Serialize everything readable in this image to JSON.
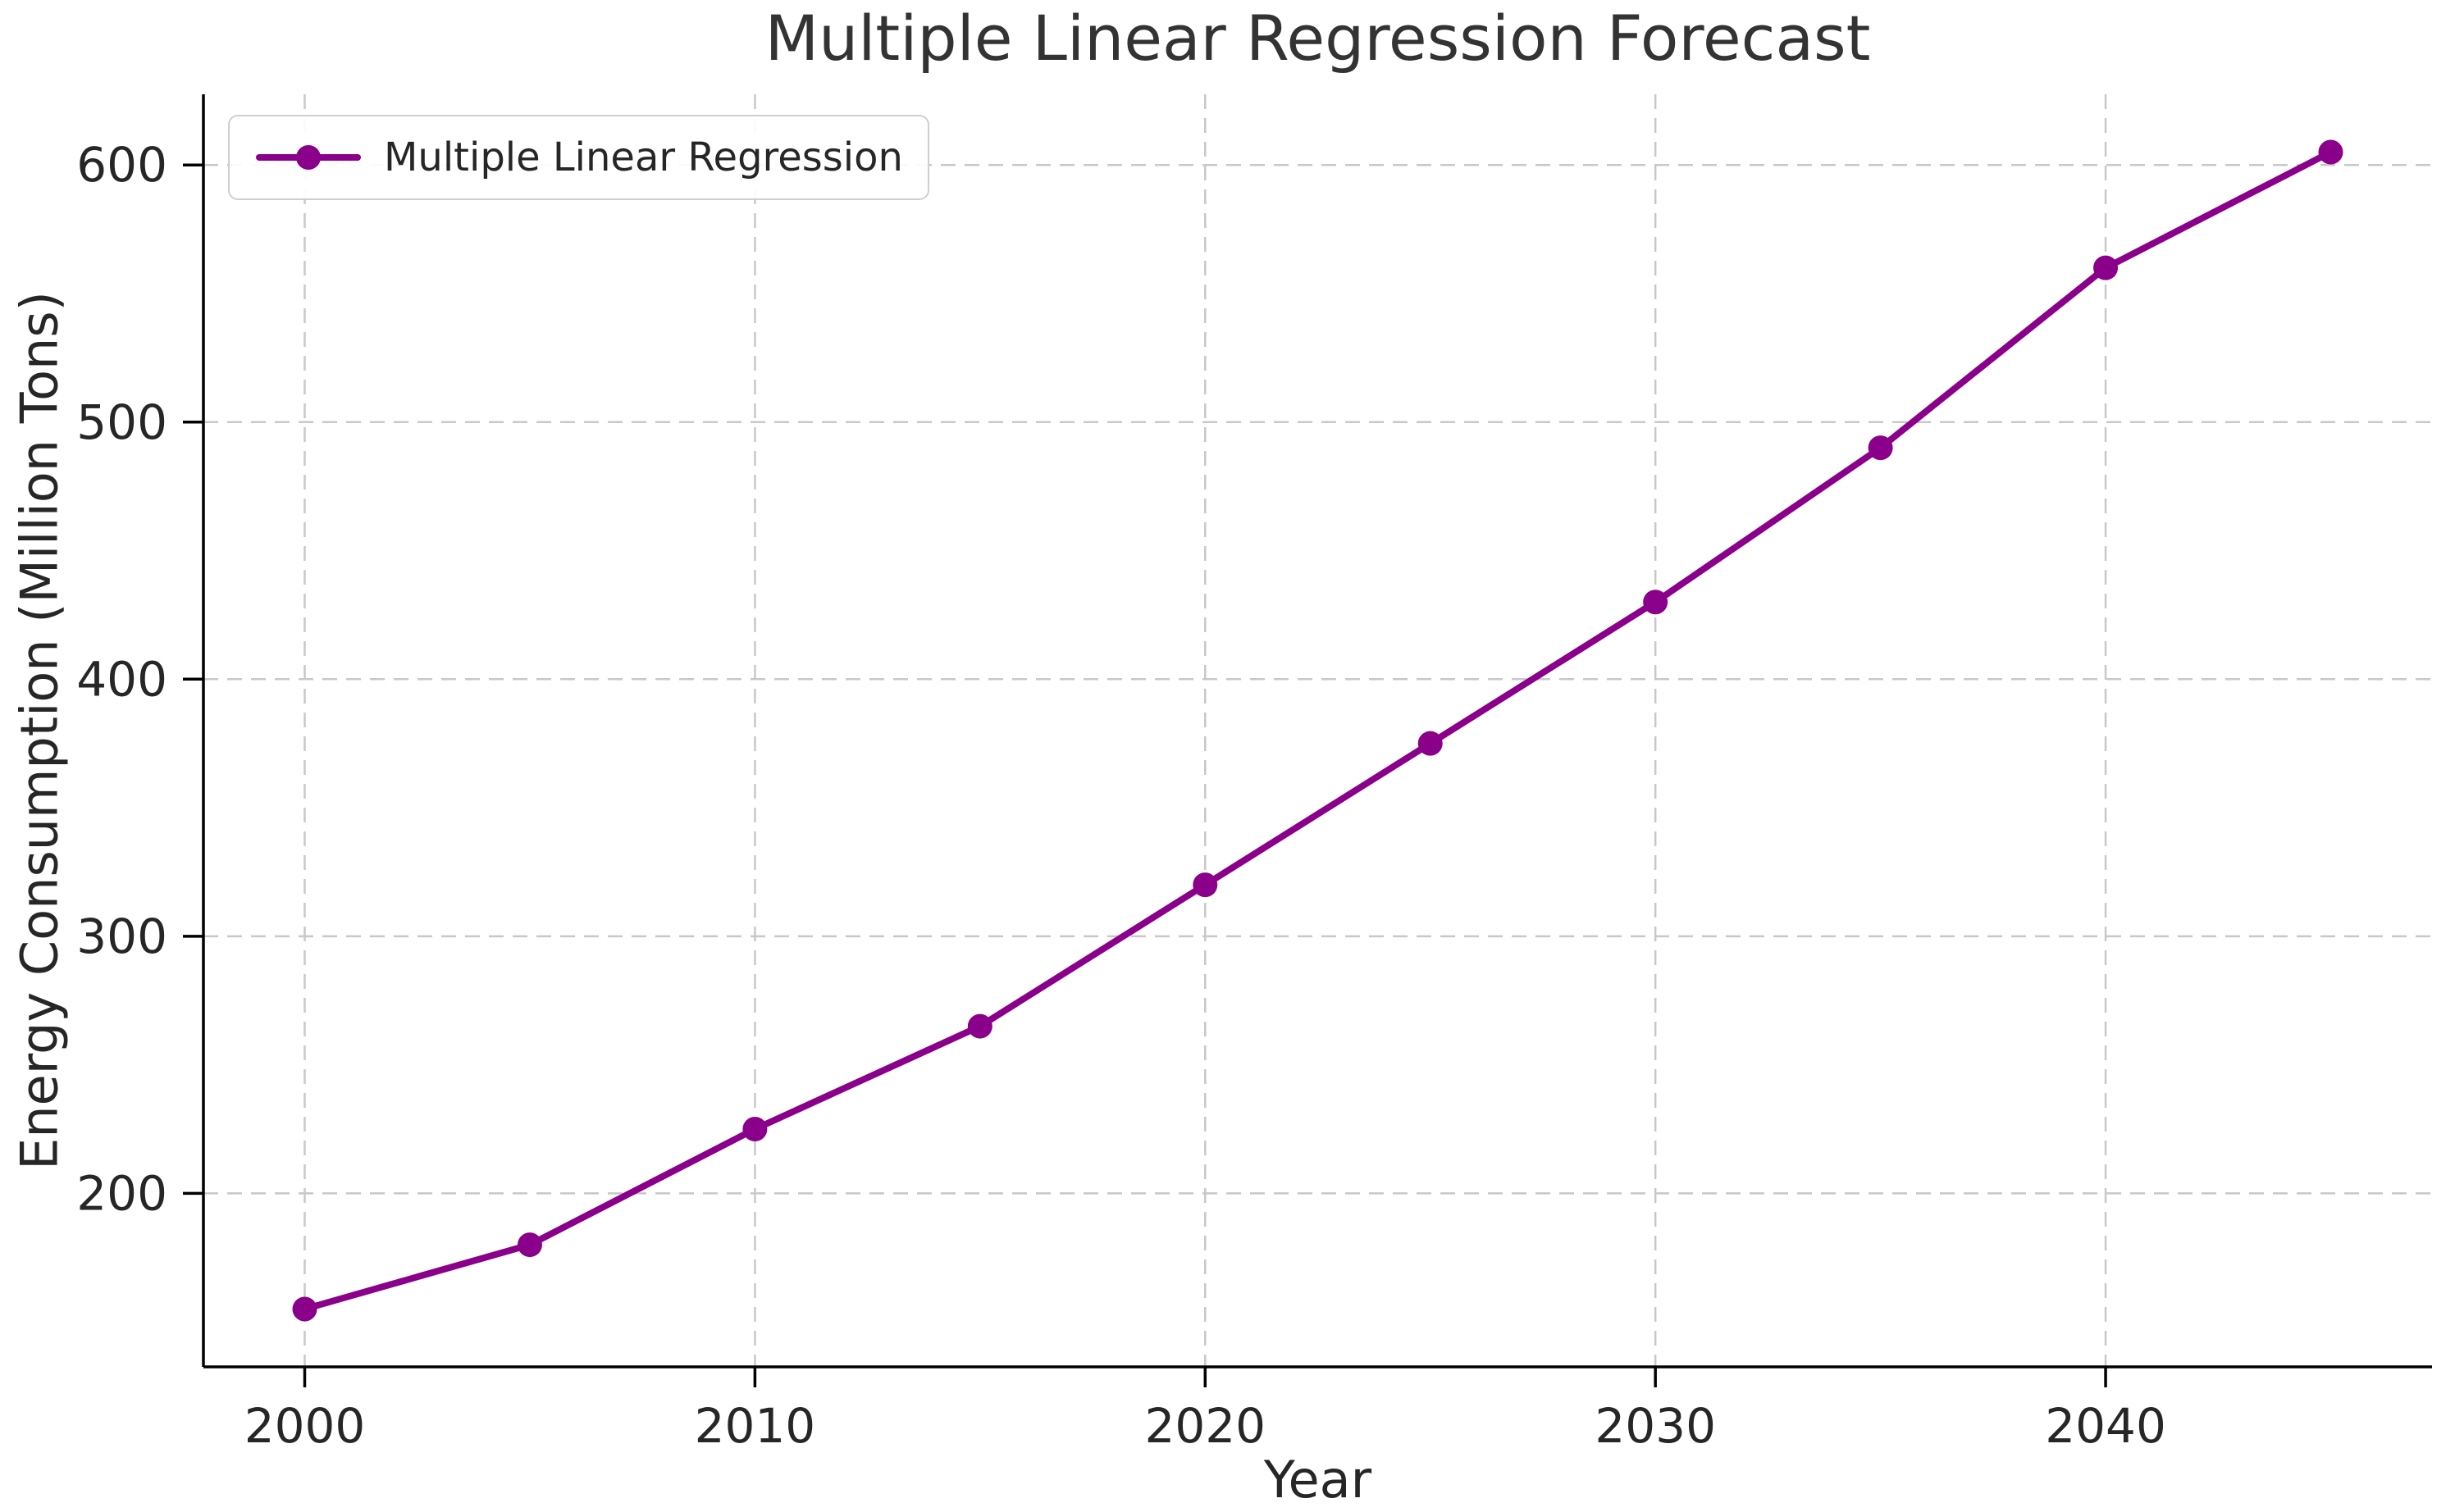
{
  "chart_data": {
    "type": "line",
    "title": "Multiple Linear Regression Forecast",
    "xlabel": "Year",
    "ylabel": "Energy Consumption (Million Tons)",
    "x": [
      2000,
      2005,
      2010,
      2015,
      2020,
      2025,
      2030,
      2035,
      2040,
      2045
    ],
    "series": [
      {
        "name": "Multiple Linear Regression",
        "values": [
          155,
          180,
          225,
          265,
          320,
          375,
          430,
          490,
          560,
          605
        ],
        "color": "#8B008B",
        "marker": "circle"
      }
    ],
    "xlim": [
      1997.75,
      2047.25
    ],
    "ylim": [
      132.5,
      627.5
    ],
    "x_ticks": [
      2000,
      2010,
      2020,
      2030,
      2040
    ],
    "x_tick_labels": [
      "2000",
      "2010",
      "2020",
      "2030",
      "2040"
    ],
    "y_ticks": [
      200,
      300,
      400,
      500,
      600
    ],
    "y_tick_labels": [
      "200",
      "300",
      "400",
      "500",
      "600"
    ],
    "grid": true,
    "grid_style": "dashed",
    "legend_position": "upper left"
  },
  "colors": {
    "line": "#8B008B",
    "grid": "#c8c8c8",
    "spine": "#000000",
    "text": "#262626",
    "title": "#333333",
    "legend_border": "#cfcfcf",
    "background": "#ffffff"
  }
}
